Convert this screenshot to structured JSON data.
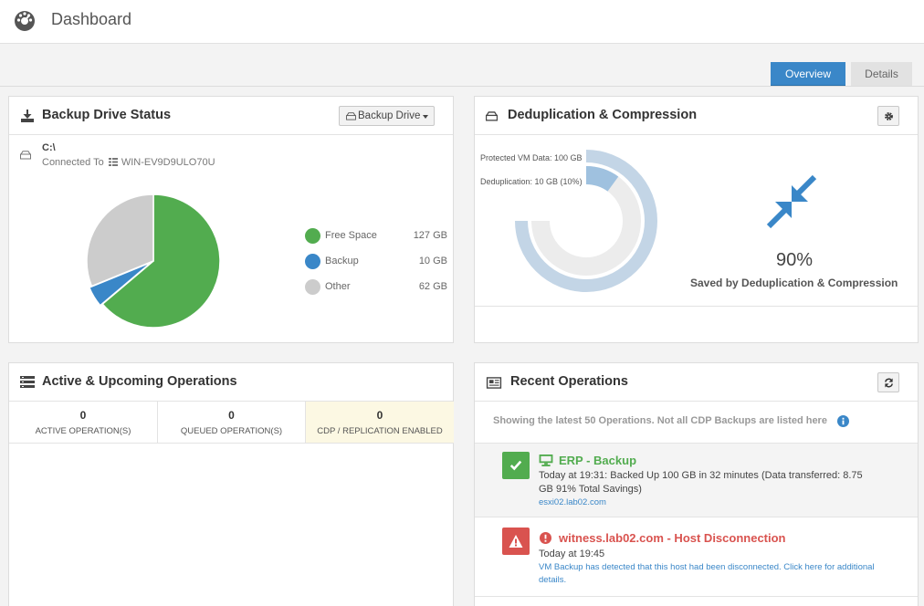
{
  "header": {
    "title": "Dashboard",
    "logo_icon": "speedometer-icon"
  },
  "tabs": [
    {
      "label": "Overview",
      "active": true
    },
    {
      "label": "Details",
      "active": false
    }
  ],
  "backup_drive": {
    "title": "Backup Drive Status",
    "button_label": "Backup Drive",
    "drive_name": "C:\\",
    "connected_prefix": "Connected To",
    "host": "WIN-EV9D9ULO70U",
    "legend": [
      {
        "label": "Free Space",
        "value": "127 GB",
        "amount": 127,
        "color": "#52ac4f"
      },
      {
        "label": "Backup",
        "value": "10 GB",
        "amount": 10,
        "color": "#3a87c8"
      },
      {
        "label": "Other",
        "value": "62 GB",
        "amount": 62,
        "color": "#cccccc"
      }
    ]
  },
  "dedup": {
    "title": "Deduplication & Compression",
    "protected_label": "Protected VM Data: 100 GB",
    "dedup_label": "Deduplication: 10 GB (10%)",
    "dedup_fraction": 0.1,
    "percent": "90%",
    "caption": "Saved by Deduplication & Compression",
    "colors": {
      "outer": "#c3d5e6",
      "inner": "#ececec",
      "highlight": "#9fc1df",
      "arrows": "#3a87c8"
    }
  },
  "active_ops": {
    "title": "Active & Upcoming Operations",
    "cells": [
      {
        "count": "0",
        "label": "ACTIVE OPERATION(S)"
      },
      {
        "count": "0",
        "label": "QUEUED OPERATION(S)"
      },
      {
        "count": "0",
        "label": "CDP / REPLICATION ENABLED"
      }
    ]
  },
  "recent_ops": {
    "title": "Recent Operations",
    "note": "Showing the latest 50 Operations. Not all CDP Backups are listed here",
    "items": [
      {
        "status": "success",
        "title": "ERP - Backup",
        "text": "Today at 19:31: Backed Up 100 GB in 32 minutes (Data transferred: 8.75 GB 91% Total Savings)",
        "link": "esxi02.lab02.com",
        "color": "#52ac4f"
      },
      {
        "status": "error",
        "title": "witness.lab02.com - Host Disconnection",
        "text": "Today at 19:45",
        "link": "VM Backup has detected that this host had been disconnected. Click here for additional details.",
        "color": "#d9534f"
      }
    ]
  }
}
